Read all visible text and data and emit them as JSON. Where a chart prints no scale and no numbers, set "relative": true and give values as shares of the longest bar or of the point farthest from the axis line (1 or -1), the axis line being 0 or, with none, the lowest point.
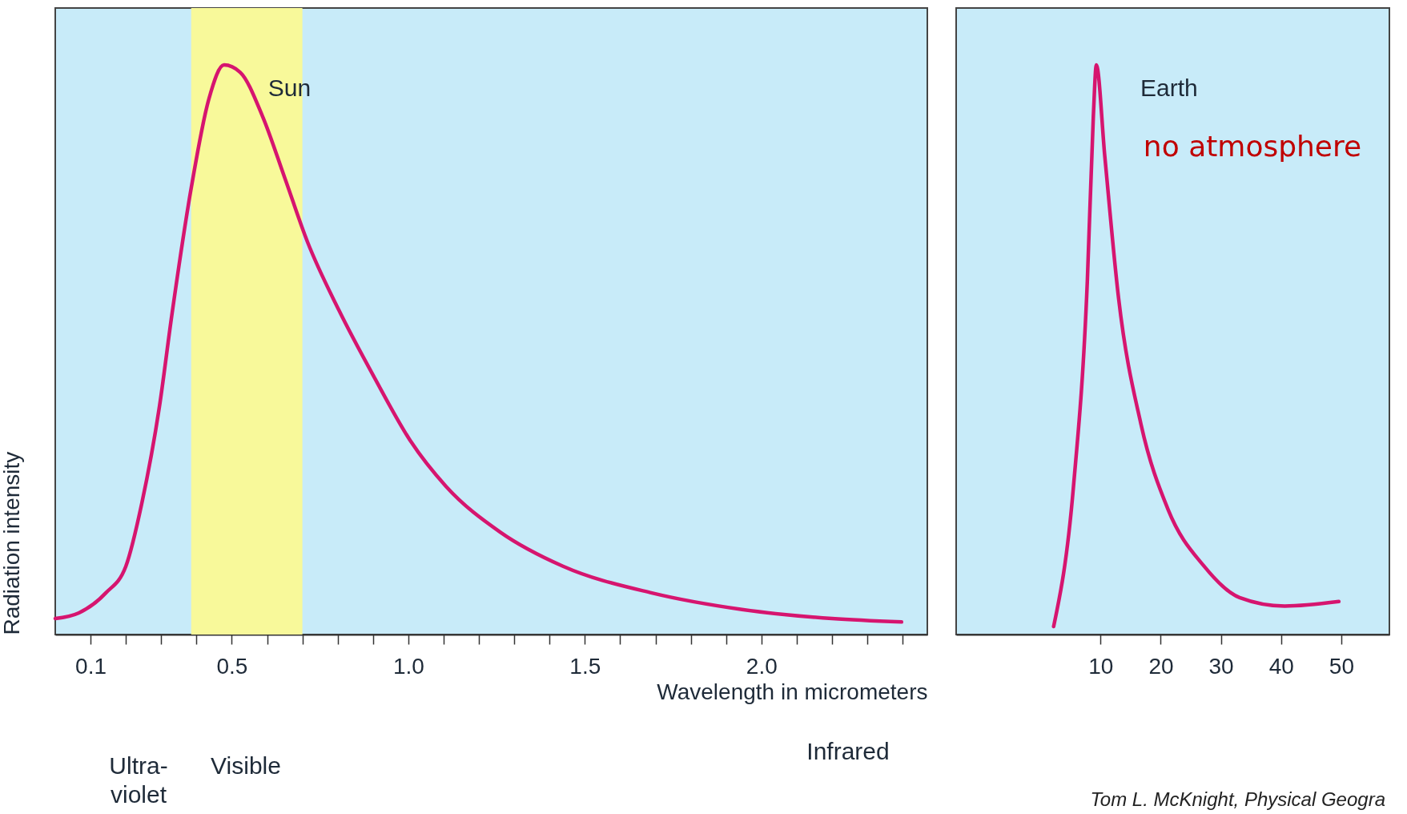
{
  "chart_data": [
    {
      "type": "line",
      "relative": true,
      "xlabel": "Wavelength in micrometers",
      "ylabel": "Radiation intensity",
      "xlim": [
        0,
        2.47
      ],
      "xticks": [
        0.1,
        {
          "value": 0.2,
          "label": null
        },
        {
          "value": 0.3,
          "label": null
        },
        {
          "value": 0.4,
          "label": null
        },
        0.5,
        {
          "value": 0.6,
          "label": null
        },
        {
          "value": 0.7,
          "label": null
        },
        {
          "value": 0.8,
          "label": null
        },
        {
          "value": 0.9,
          "label": null
        },
        {
          "value": 1,
          "label": "1.0"
        },
        {
          "value": 1.1,
          "label": null
        },
        {
          "value": 1.2,
          "label": null
        },
        {
          "value": 1.3,
          "label": null
        },
        {
          "value": 1.4,
          "label": null
        },
        1.5,
        {
          "value": 1.6,
          "label": null
        },
        {
          "value": 1.7,
          "label": null
        },
        {
          "value": 1.8,
          "label": null
        },
        {
          "value": 1.9,
          "label": null
        },
        {
          "value": 2,
          "label": "2.0"
        },
        {
          "value": 2.1,
          "label": null
        },
        {
          "value": 2.2,
          "label": null
        },
        {
          "value": 2.3,
          "label": null
        },
        {
          "value": 2.4,
          "label": null
        }
      ],
      "series": [
        {
          "name": "Sun",
          "color": "#d6156f",
          "x": [
            0,
            0.067,
            0.143,
            0.2,
            0.245,
            0.295,
            0.33,
            0.384,
            0.435,
            0.478,
            0.524,
            0.587,
            0.651,
            0.714,
            0.803,
            0.905,
            1.006,
            1.107,
            1.26,
            1.438,
            1.69,
            1.945,
            2.2,
            2.397
          ],
          "values": [
            0.028,
            0.038,
            0.073,
            0.12,
            0.23,
            0.4,
            0.56,
            0.78,
            0.94,
            1,
            0.987,
            0.91,
            0.8,
            0.69,
            0.57,
            0.45,
            0.34,
            0.26,
            0.18,
            0.12,
            0.073,
            0.044,
            0.028,
            0.022
          ]
        }
      ],
      "bands": [
        {
          "axis": "x",
          "from": 0.385,
          "to": 0.7,
          "color": "#f8f99a"
        }
      ],
      "annotations": [
        "Ultra-\nviolet",
        "Visible",
        "Infrared"
      ],
      "grid": false
    },
    {
      "type": "line",
      "relative": true,
      "xlim": [
        -14,
        58
      ],
      "xticks": [
        10,
        20,
        30,
        40,
        50
      ],
      "series": [
        {
          "name": "Earth",
          "color": "#d6156f",
          "x": [
            2.2,
            5.5,
            7.8,
            8.8,
            9.3,
            10.7,
            13,
            16.7,
            21.2,
            27.2,
            33.1,
            40.6,
            49.6
          ],
          "values": [
            0.014,
            0.26,
            0.62,
            0.91,
            1,
            0.84,
            0.59,
            0.37,
            0.22,
            0.12,
            0.065,
            0.05,
            0.058
          ]
        }
      ],
      "annotations": [
        "no atmosphere",
        "Tom L. McKnight, Physical Geogra"
      ],
      "grid": false
    }
  ]
}
